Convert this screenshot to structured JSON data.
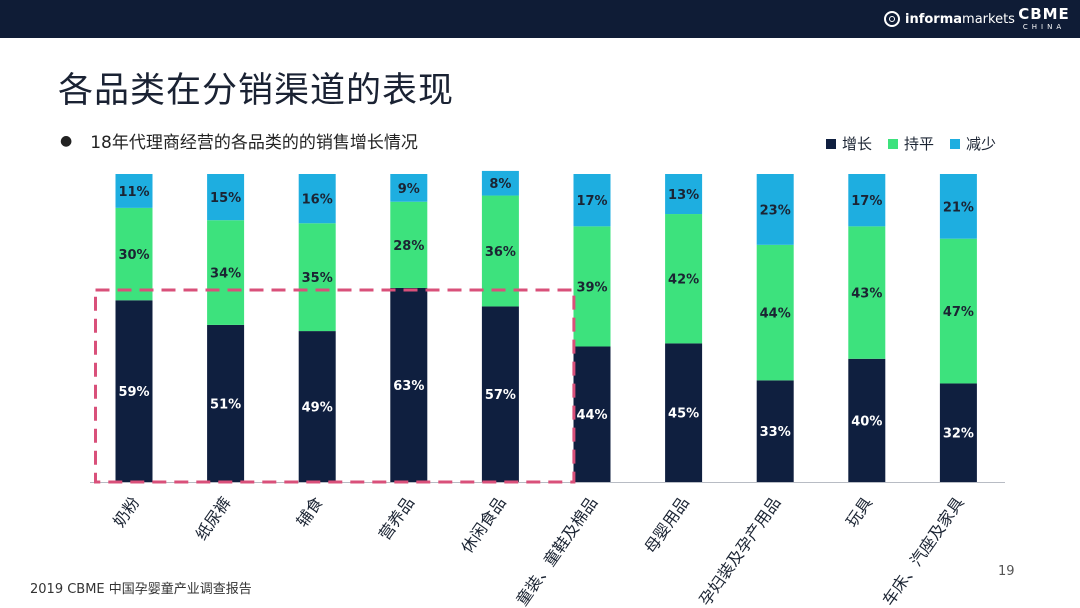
{
  "header": {
    "brand_informa_bold": "informa",
    "brand_informa_light": "markets",
    "brand_cbme": "CBME",
    "brand_cbme_sub": "CHINA"
  },
  "title": "各品类在分销渠道的表现",
  "bullet": "18年代理商经营的各品类的的销售增长情况",
  "legend": [
    {
      "label": "增长",
      "color": "#0f1f3f"
    },
    {
      "label": "持平",
      "color": "#3de27d"
    },
    {
      "label": "减少",
      "color": "#1eaee0"
    }
  ],
  "chart_data": {
    "type": "bar",
    "stacked": true,
    "categories": [
      "奶粉",
      "纸尿裤",
      "辅食",
      "营养品",
      "休闲食品",
      "童装、童鞋及棉品",
      "母婴用品",
      "孕妇装及孕产用品",
      "玩具",
      "车床、汽座及家具"
    ],
    "series": [
      {
        "name": "增长",
        "color": "#0f1f3f",
        "values": [
          59,
          51,
          49,
          63,
          57,
          44,
          45,
          33,
          40,
          32
        ]
      },
      {
        "name": "持平",
        "color": "#3de27d",
        "values": [
          30,
          34,
          35,
          28,
          36,
          39,
          42,
          44,
          43,
          47
        ]
      },
      {
        "name": "减少",
        "color": "#1eaee0",
        "values": [
          11,
          15,
          16,
          9,
          8,
          17,
          13,
          23,
          17,
          21
        ]
      }
    ],
    "value_suffix": "%",
    "ylim": [
      0,
      100
    ],
    "highlight_categories": [
      "奶粉",
      "纸尿裤",
      "辅食",
      "营养品",
      "休闲食品"
    ],
    "highlight_color": "#d9507a"
  },
  "footer": "2019 CBME 中国孕婴童产业调查报告",
  "page_number": "19"
}
